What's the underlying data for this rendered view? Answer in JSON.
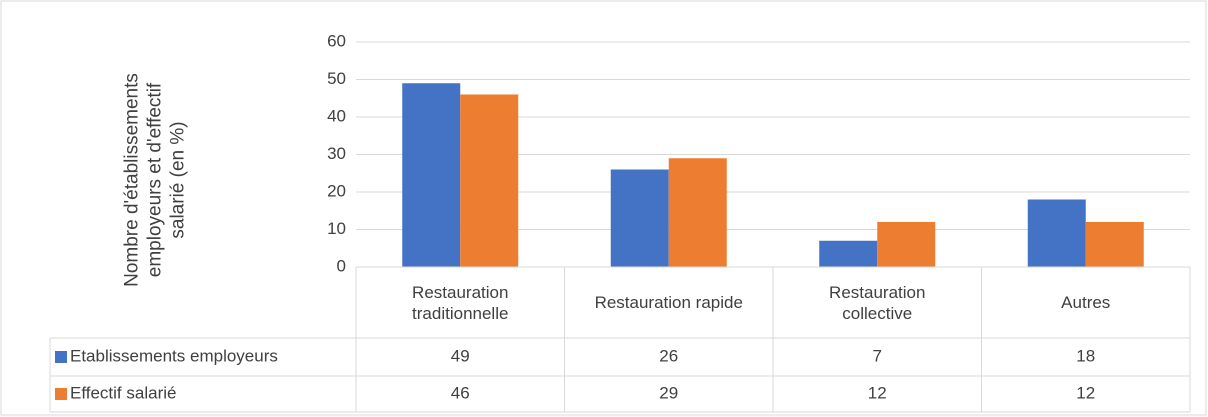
{
  "chart_data": {
    "type": "bar",
    "y_axis_label": "Nombre d'établissements employeurs et d'effectif salarié (en %)",
    "categories": [
      "Restauration traditionnelle",
      "Restauration rapide",
      "Restauration collective",
      "Autres"
    ],
    "series": [
      {
        "name": "Etablissements employeurs",
        "color": "#4472c4",
        "values": [
          49,
          26,
          7,
          18
        ]
      },
      {
        "name": "Effectif salarié",
        "color": "#ed7d31",
        "values": [
          46,
          29,
          12,
          12
        ]
      }
    ],
    "ylim": [
      0,
      60
    ],
    "yticks": [
      0,
      10,
      20,
      30,
      40,
      50,
      60
    ],
    "grid": true,
    "data_table": true
  }
}
